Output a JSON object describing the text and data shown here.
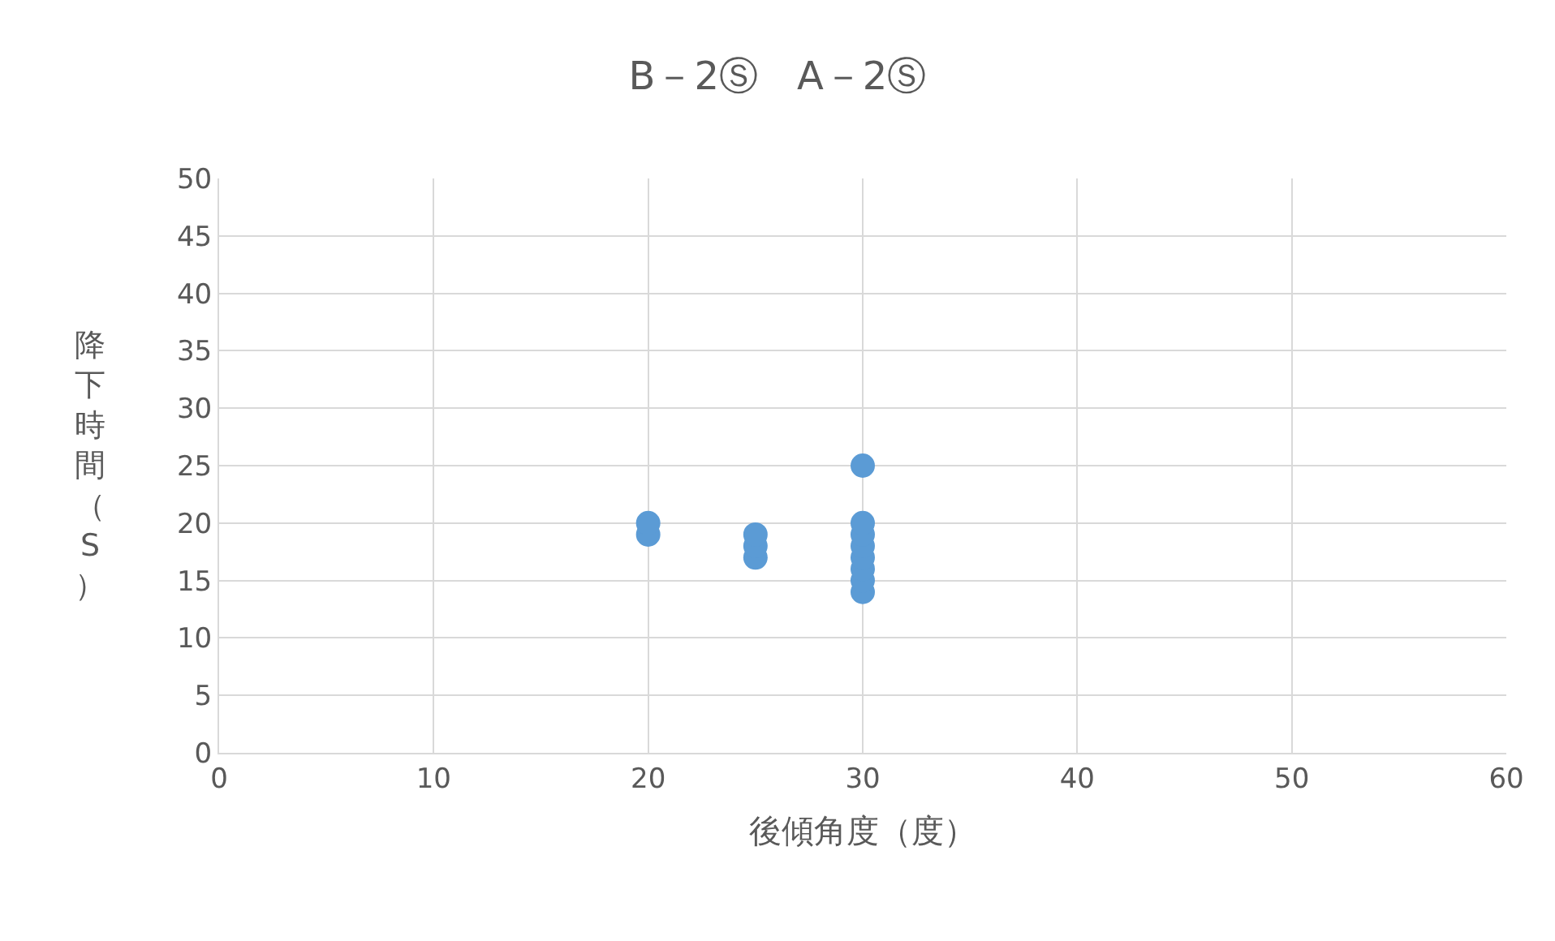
{
  "chart_data": {
    "type": "scatter",
    "title": "B－2Ⓢ　A－2Ⓢ",
    "xlabel": "後傾角度（度）",
    "ylabel": "降下時間（S）",
    "series": [
      {
        "color": "#5b9bd5",
        "x": [
          20,
          20,
          25,
          25,
          25,
          30,
          30,
          30,
          30,
          30,
          30,
          30,
          30
        ],
        "values": [
          19,
          20,
          17,
          18,
          19,
          14,
          15,
          16,
          17,
          18,
          19,
          20,
          25
        ]
      }
    ],
    "xlim": [
      0,
      60
    ],
    "xticks": [
      0,
      10,
      20,
      30,
      40,
      50,
      60
    ],
    "ylim": [
      0,
      50
    ],
    "yticks": [
      0,
      5,
      10,
      15,
      20,
      25,
      30,
      35,
      40,
      45,
      50
    ],
    "grid": true,
    "marker": "circle",
    "legend": false
  }
}
